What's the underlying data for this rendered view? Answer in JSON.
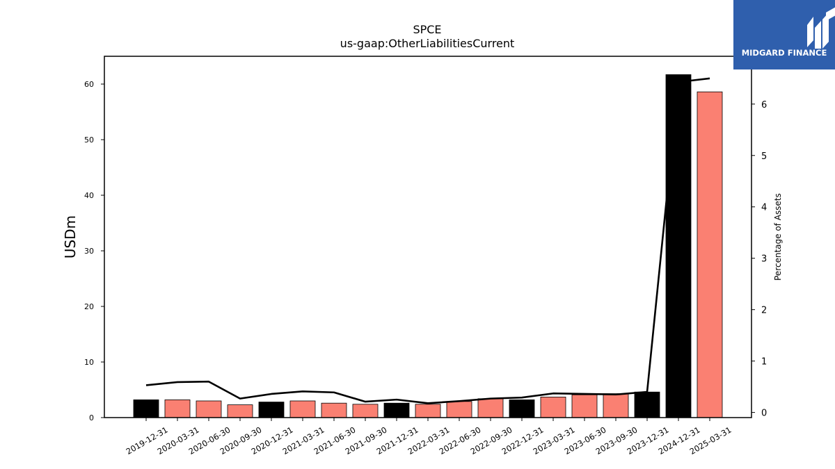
{
  "logo": {
    "text": "MIDGARD FINANCE",
    "icon": "midgard-m-icon",
    "background": "#2f5fad"
  },
  "chart_data": {
    "type": "bar",
    "title": "SPCE",
    "subtitle": "us-gaap:OtherLiabilitiesCurrent",
    "ylabel": "USDm",
    "y2label": "Percentage of Assets",
    "ylim": [
      0,
      65
    ],
    "y2lim": [
      -0.1,
      6.93
    ],
    "yticks": [
      0,
      10,
      20,
      30,
      40,
      50,
      60
    ],
    "y2ticks": [
      0,
      1,
      2,
      3,
      4,
      5,
      6
    ],
    "categories": [
      "2019-12-31",
      "2020-03-31",
      "2020-06-30",
      "2020-09-30",
      "2020-12-31",
      "2021-03-31",
      "2021-06-30",
      "2021-09-30",
      "2021-12-31",
      "2022-03-31",
      "2022-06-30",
      "2022-09-30",
      "2022-12-31",
      "2023-03-31",
      "2023-06-30",
      "2023-09-30",
      "2023-12-31",
      "2024-12-31",
      "2025-03-31"
    ],
    "series": [
      {
        "kind": "bar",
        "values": [
          3.2,
          3.2,
          3.0,
          2.3,
          2.8,
          3.0,
          2.6,
          2.4,
          2.6,
          2.4,
          2.9,
          3.4,
          3.2,
          3.7,
          4.1,
          4.3,
          4.6,
          61.7,
          58.6
        ],
        "colors": [
          "#000000",
          "#fa8072",
          "#fa8072",
          "#fa8072",
          "#000000",
          "#fa8072",
          "#fa8072",
          "#fa8072",
          "#000000",
          "#fa8072",
          "#fa8072",
          "#fa8072",
          "#000000",
          "#fa8072",
          "#fa8072",
          "#fa8072",
          "#000000",
          "#000000",
          "#fa8072"
        ]
      },
      {
        "kind": "line",
        "axis": "right",
        "color": "#000000",
        "values": [
          0.53,
          0.59,
          0.6,
          0.27,
          0.36,
          0.41,
          0.39,
          0.21,
          0.25,
          0.18,
          0.22,
          0.27,
          0.29,
          0.37,
          0.36,
          0.35,
          0.4,
          6.43,
          6.5
        ]
      }
    ],
    "grid": false
  }
}
